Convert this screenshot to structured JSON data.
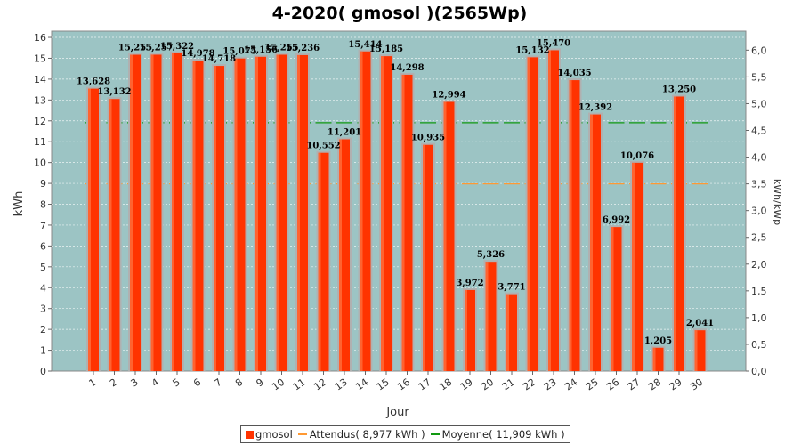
{
  "chart_data": {
    "type": "bar",
    "title": "4-2020( gmosol )(2565Wp)",
    "xlabel": "Jour",
    "ylabel": "kWh",
    "y2label": "kWh/kWp",
    "ylim": [
      0,
      16.3
    ],
    "y2lim": [
      0,
      6.355
    ],
    "yticks": [
      "0",
      "1",
      "2",
      "3",
      "4",
      "5",
      "6",
      "7",
      "8",
      "9",
      "10",
      "11",
      "12",
      "13",
      "14",
      "15",
      "16"
    ],
    "y2ticks": [
      "0,0",
      "0,5",
      "1,0",
      "1,5",
      "2,0",
      "2,5",
      "3,0",
      "3,5",
      "4,0",
      "4,5",
      "5,0",
      "5,5",
      "6,0"
    ],
    "categories": [
      "1",
      "2",
      "3",
      "4",
      "5",
      "6",
      "7",
      "8",
      "9",
      "10",
      "11",
      "12",
      "13",
      "14",
      "15",
      "16",
      "17",
      "18",
      "19",
      "20",
      "21",
      "22",
      "23",
      "24",
      "25",
      "26",
      "27",
      "28",
      "29",
      "30"
    ],
    "values": [
      13.628,
      13.132,
      15.255,
      15.257,
      15.322,
      14.978,
      14.718,
      15.075,
      15.156,
      15.255,
      15.236,
      10.552,
      11.201,
      15.414,
      15.185,
      14.298,
      10.935,
      12.994,
      3.972,
      5.326,
      3.771,
      15.132,
      15.47,
      14.035,
      12.392,
      6.992,
      10.076,
      1.205,
      13.25,
      2.041
    ],
    "value_labels": [
      "13,628",
      "13,132",
      "15,255",
      "15,257",
      "15,322",
      "14,978",
      "14,718",
      "15,075",
      "15,156",
      "15,255",
      "15,236",
      "10,552",
      "11,201",
      "15,414",
      "15,185",
      "14,298",
      "10,935",
      "12,994",
      "3,972",
      "5,326",
      "3,771",
      "15,132",
      "15,470",
      "14,035",
      "12,392",
      "6,992",
      "10,076",
      "1,205",
      "13,250",
      "2,041"
    ],
    "expected": 8.977,
    "average": 11.909,
    "grid": true,
    "legend_position": "bottom",
    "series_names": {
      "bars": "gmosol",
      "expected": "Attendus( 8,977 kWh )",
      "average": "Moyenne( 11,909 kWh )"
    },
    "colors": {
      "bar": "#ff3300",
      "bar_shadow": "#b0b0b0",
      "plot_bg": "#9cc4c4",
      "expected": "#ff9933",
      "average": "#119911"
    }
  }
}
